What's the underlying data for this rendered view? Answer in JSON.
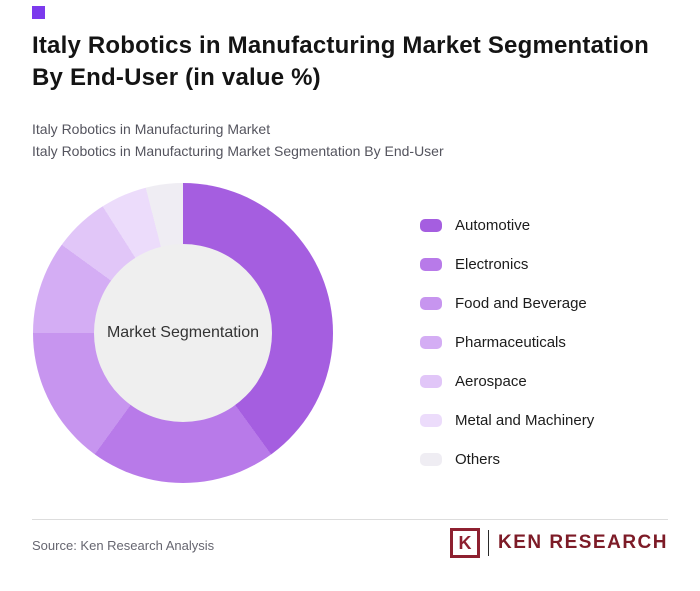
{
  "accent": {
    "square_color": "#7c3aed"
  },
  "header": {
    "title": "Italy Robotics in Manufacturing Market Segmentation By End-User (in value %)",
    "subtitle_line1": "Italy Robotics in Manufacturing Market",
    "subtitle_line2": "Italy Robotics in Manufacturing Market Segmentation By End-User"
  },
  "chart_data": {
    "type": "pie",
    "donut": true,
    "title": "Italy Robotics in Manufacturing Market Segmentation By End-User (in value %)",
    "center_label": "Market Segmentation",
    "categories": [
      "Automotive",
      "Electronics",
      "Food and Beverage",
      "Pharmaceuticals",
      "Aerospace",
      "Metal and Machinery",
      "Others"
    ],
    "values": [
      40,
      20,
      15,
      10,
      6,
      5,
      4
    ],
    "colors": [
      "#a55ee0",
      "#b87ae9",
      "#c795ef",
      "#d4adf4",
      "#e1c6f8",
      "#ecdcfb",
      "#efedf3"
    ],
    "start_angle_deg": 0,
    "direction": "clockwise",
    "legend_position": "right",
    "hole_color": "#efefef"
  },
  "footer": {
    "source": "Source: Ken Research Analysis",
    "logo_letter": "K",
    "logo_text": "KEN RESEARCH",
    "logo_color": "#8e2030"
  }
}
